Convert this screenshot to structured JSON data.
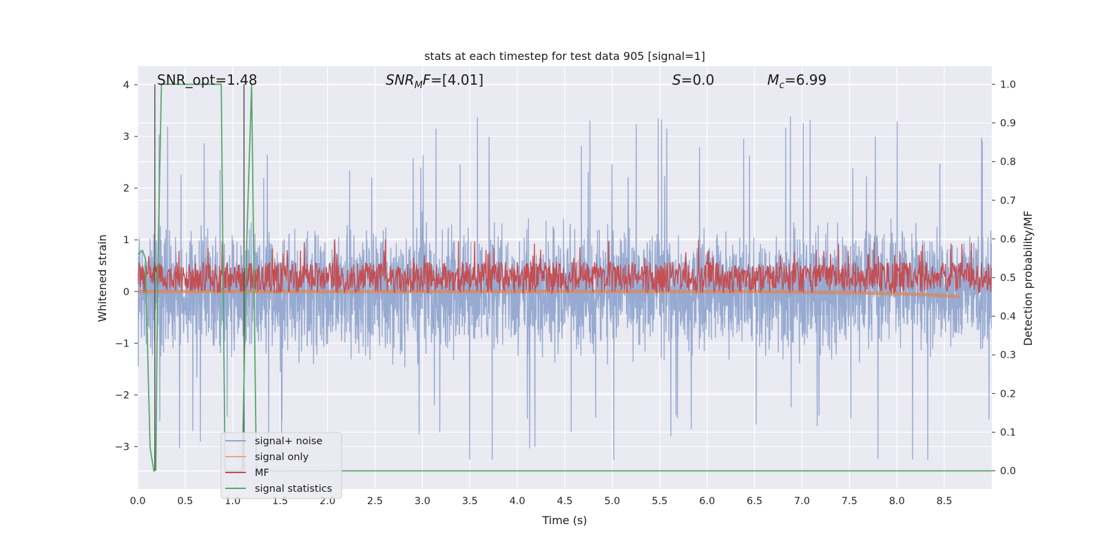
{
  "chart_data": {
    "type": "line",
    "title": "stats at each timestep for test data 905 [signal=1]",
    "xlabel": "Time (s)",
    "ylabel_left": "Whitened strain",
    "ylabel_right": "Detection probability/MF",
    "xlim": [
      0.0,
      9.0
    ],
    "ylim_left": [
      -3.82,
      4.36
    ],
    "ylim_right": [
      -0.047,
      1.047
    ],
    "x_ticks": [
      "0.0",
      "0.5",
      "1.0",
      "1.5",
      "2.0",
      "2.5",
      "3.0",
      "3.5",
      "4.0",
      "4.5",
      "5.0",
      "5.5",
      "6.0",
      "6.5",
      "7.0",
      "7.5",
      "8.0",
      "8.5"
    ],
    "y_left_ticks": [
      "4",
      "3",
      "2",
      "1",
      "0",
      "−1",
      "−2",
      "−3"
    ],
    "y_left_tick_values": [
      4,
      3,
      2,
      1,
      0,
      -1,
      -2,
      -3
    ],
    "y_right_ticks": [
      "1.0",
      "0.9",
      "0.8",
      "0.7",
      "0.6",
      "0.5",
      "0.4",
      "0.3",
      "0.2",
      "0.1",
      "0.0"
    ],
    "y_right_tick_values": [
      1.0,
      0.9,
      0.8,
      0.7,
      0.6,
      0.5,
      0.4,
      0.3,
      0.2,
      0.1,
      0.0
    ],
    "grid": true,
    "legend_placement": "lower-left",
    "annotations": {
      "snr_opt": {
        "prefix": "SNR_opt=",
        "value": "1.48"
      },
      "snr_mf": {
        "var": "SNR",
        "sub": "M",
        "mid": "F=",
        "value": "[4.01]"
      },
      "s_stat": {
        "var": "S",
        "value": "=0.0"
      },
      "mc": {
        "var": "M",
        "sub": "c",
        "value": "=6.99"
      }
    },
    "series": [
      {
        "name": "signal+ noise",
        "axis": "left",
        "color": "#92a6cf",
        "noise_envelope": {
          "x_range": [
            0.0,
            9.0
          ],
          "typical_amplitude": 1.9,
          "max_peak": 4.0,
          "min_peak": -3.2
        }
      },
      {
        "name": "signal only",
        "axis": "left",
        "color": "#dd8452",
        "x": [
          0.0,
          1.0,
          2.0,
          3.0,
          4.0,
          5.0,
          6.0,
          6.5,
          7.0,
          7.5,
          8.0,
          8.3,
          8.5,
          8.65
        ],
        "y": [
          0.0,
          0.0,
          0.0,
          0.0,
          0.0,
          0.0,
          0.0,
          0.0,
          -0.01,
          -0.02,
          -0.04,
          -0.06,
          -0.08,
          -0.1
        ]
      },
      {
        "name": "MF",
        "axis": "right",
        "color": "#c44e52",
        "band": {
          "x_range": [
            0.0,
            9.0
          ],
          "baseline": 0.5,
          "low": 0.46,
          "high": 0.55,
          "peaks": [
            0.6,
            0.61,
            0.62
          ]
        }
      },
      {
        "name": "signal statistics",
        "axis": "right",
        "color": "#55a868",
        "x": [
          0.0,
          0.05,
          0.08,
          0.13,
          0.17,
          0.19,
          0.21,
          0.25,
          0.3,
          0.5,
          0.7,
          0.88,
          0.9,
          0.92,
          0.95,
          1.05,
          1.1,
          1.15,
          1.2,
          1.25,
          1.3,
          2.0,
          3.0,
          4.0,
          5.0,
          6.0,
          7.0,
          8.0,
          9.0
        ],
        "y": [
          0.56,
          0.57,
          0.55,
          0.06,
          0.0,
          0.002,
          0.5,
          1.0,
          1.0,
          1.0,
          1.0,
          1.0,
          0.5,
          0.0,
          0.0,
          0.0,
          0.0,
          0.6,
          1.0,
          0.0,
          0.0,
          0.0,
          0.0,
          0.0,
          0.0,
          0.0,
          0.0,
          0.0,
          0.0
        ]
      }
    ],
    "markers": {
      "vertical_lines_x": [
        0.18,
        1.12
      ],
      "color": "#555555"
    },
    "colors": {
      "plot_bg": "#eaeaf2",
      "grid": "#ffffff"
    }
  }
}
